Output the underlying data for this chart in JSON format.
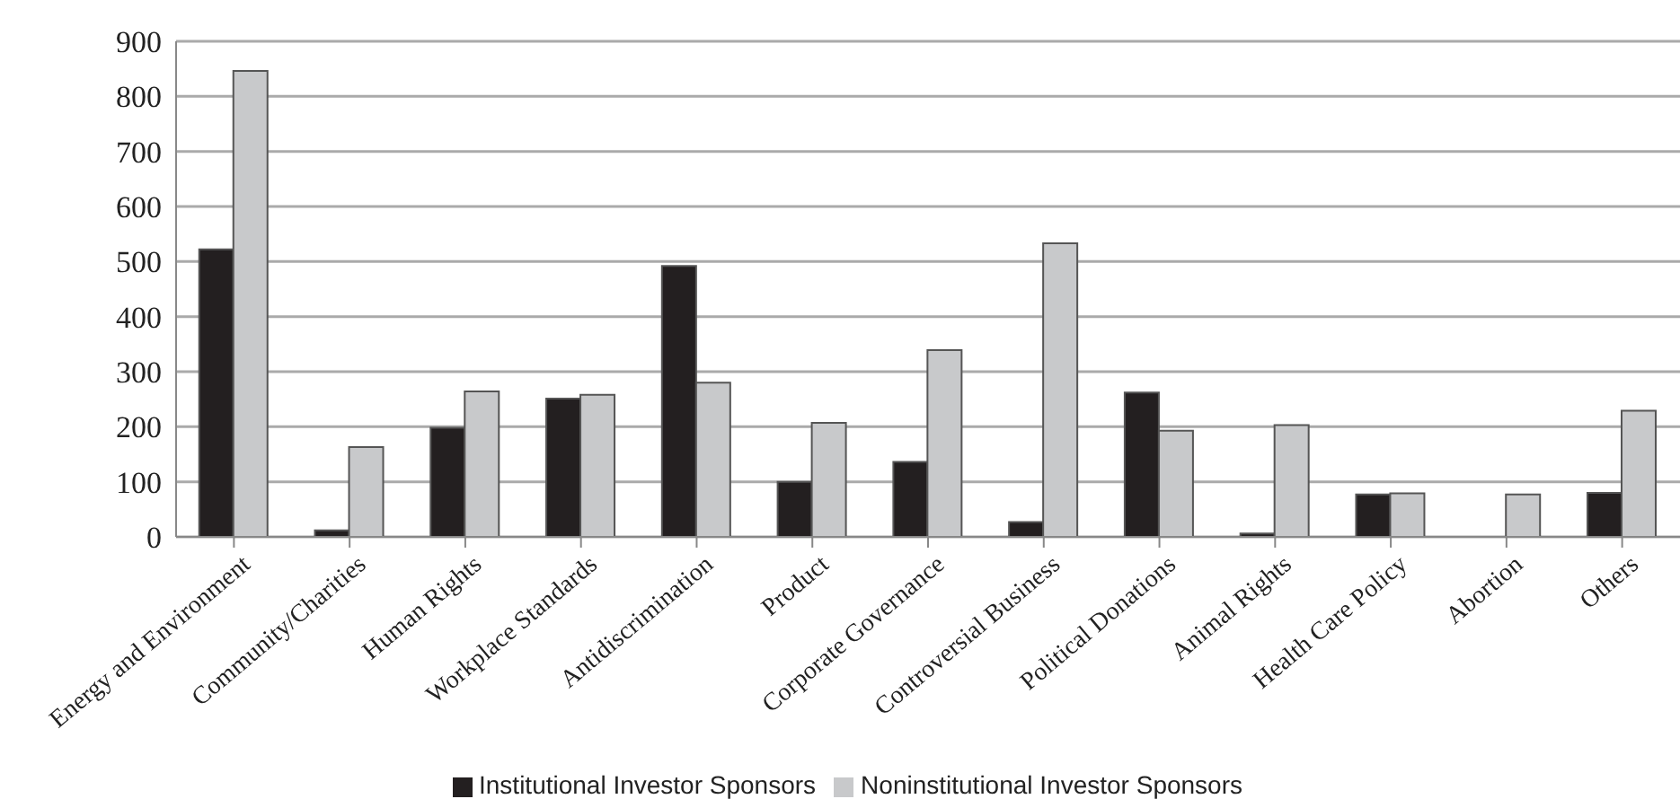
{
  "chart_data": {
    "type": "bar",
    "categories": [
      "Energy and Environment",
      "Community/Charities",
      "Human Rights",
      "Workplace Standards",
      "Antidiscrimination",
      "Product",
      "Corporate Governance",
      "Controversial Business",
      "Political Donations",
      "Animal Rights",
      "Health Care Policy",
      "Abortion",
      "Others"
    ],
    "series": [
      {
        "name": "Institutional Investor Sponsors",
        "color": "#231f20",
        "values": [
          522,
          12,
          198,
          251,
          492,
          100,
          136,
          27,
          262,
          6,
          77,
          0,
          80
        ]
      },
      {
        "name": "Noninstitutional Investor Sponsors",
        "color": "#c8c9cb",
        "values": [
          846,
          163,
          264,
          258,
          280,
          207,
          339,
          533,
          193,
          203,
          79,
          77,
          229
        ]
      }
    ],
    "ylim": [
      0,
      900
    ],
    "yticks": [
      0,
      100,
      200,
      300,
      400,
      500,
      600,
      700,
      800,
      900
    ],
    "grid": "y",
    "legend": "bottom"
  }
}
